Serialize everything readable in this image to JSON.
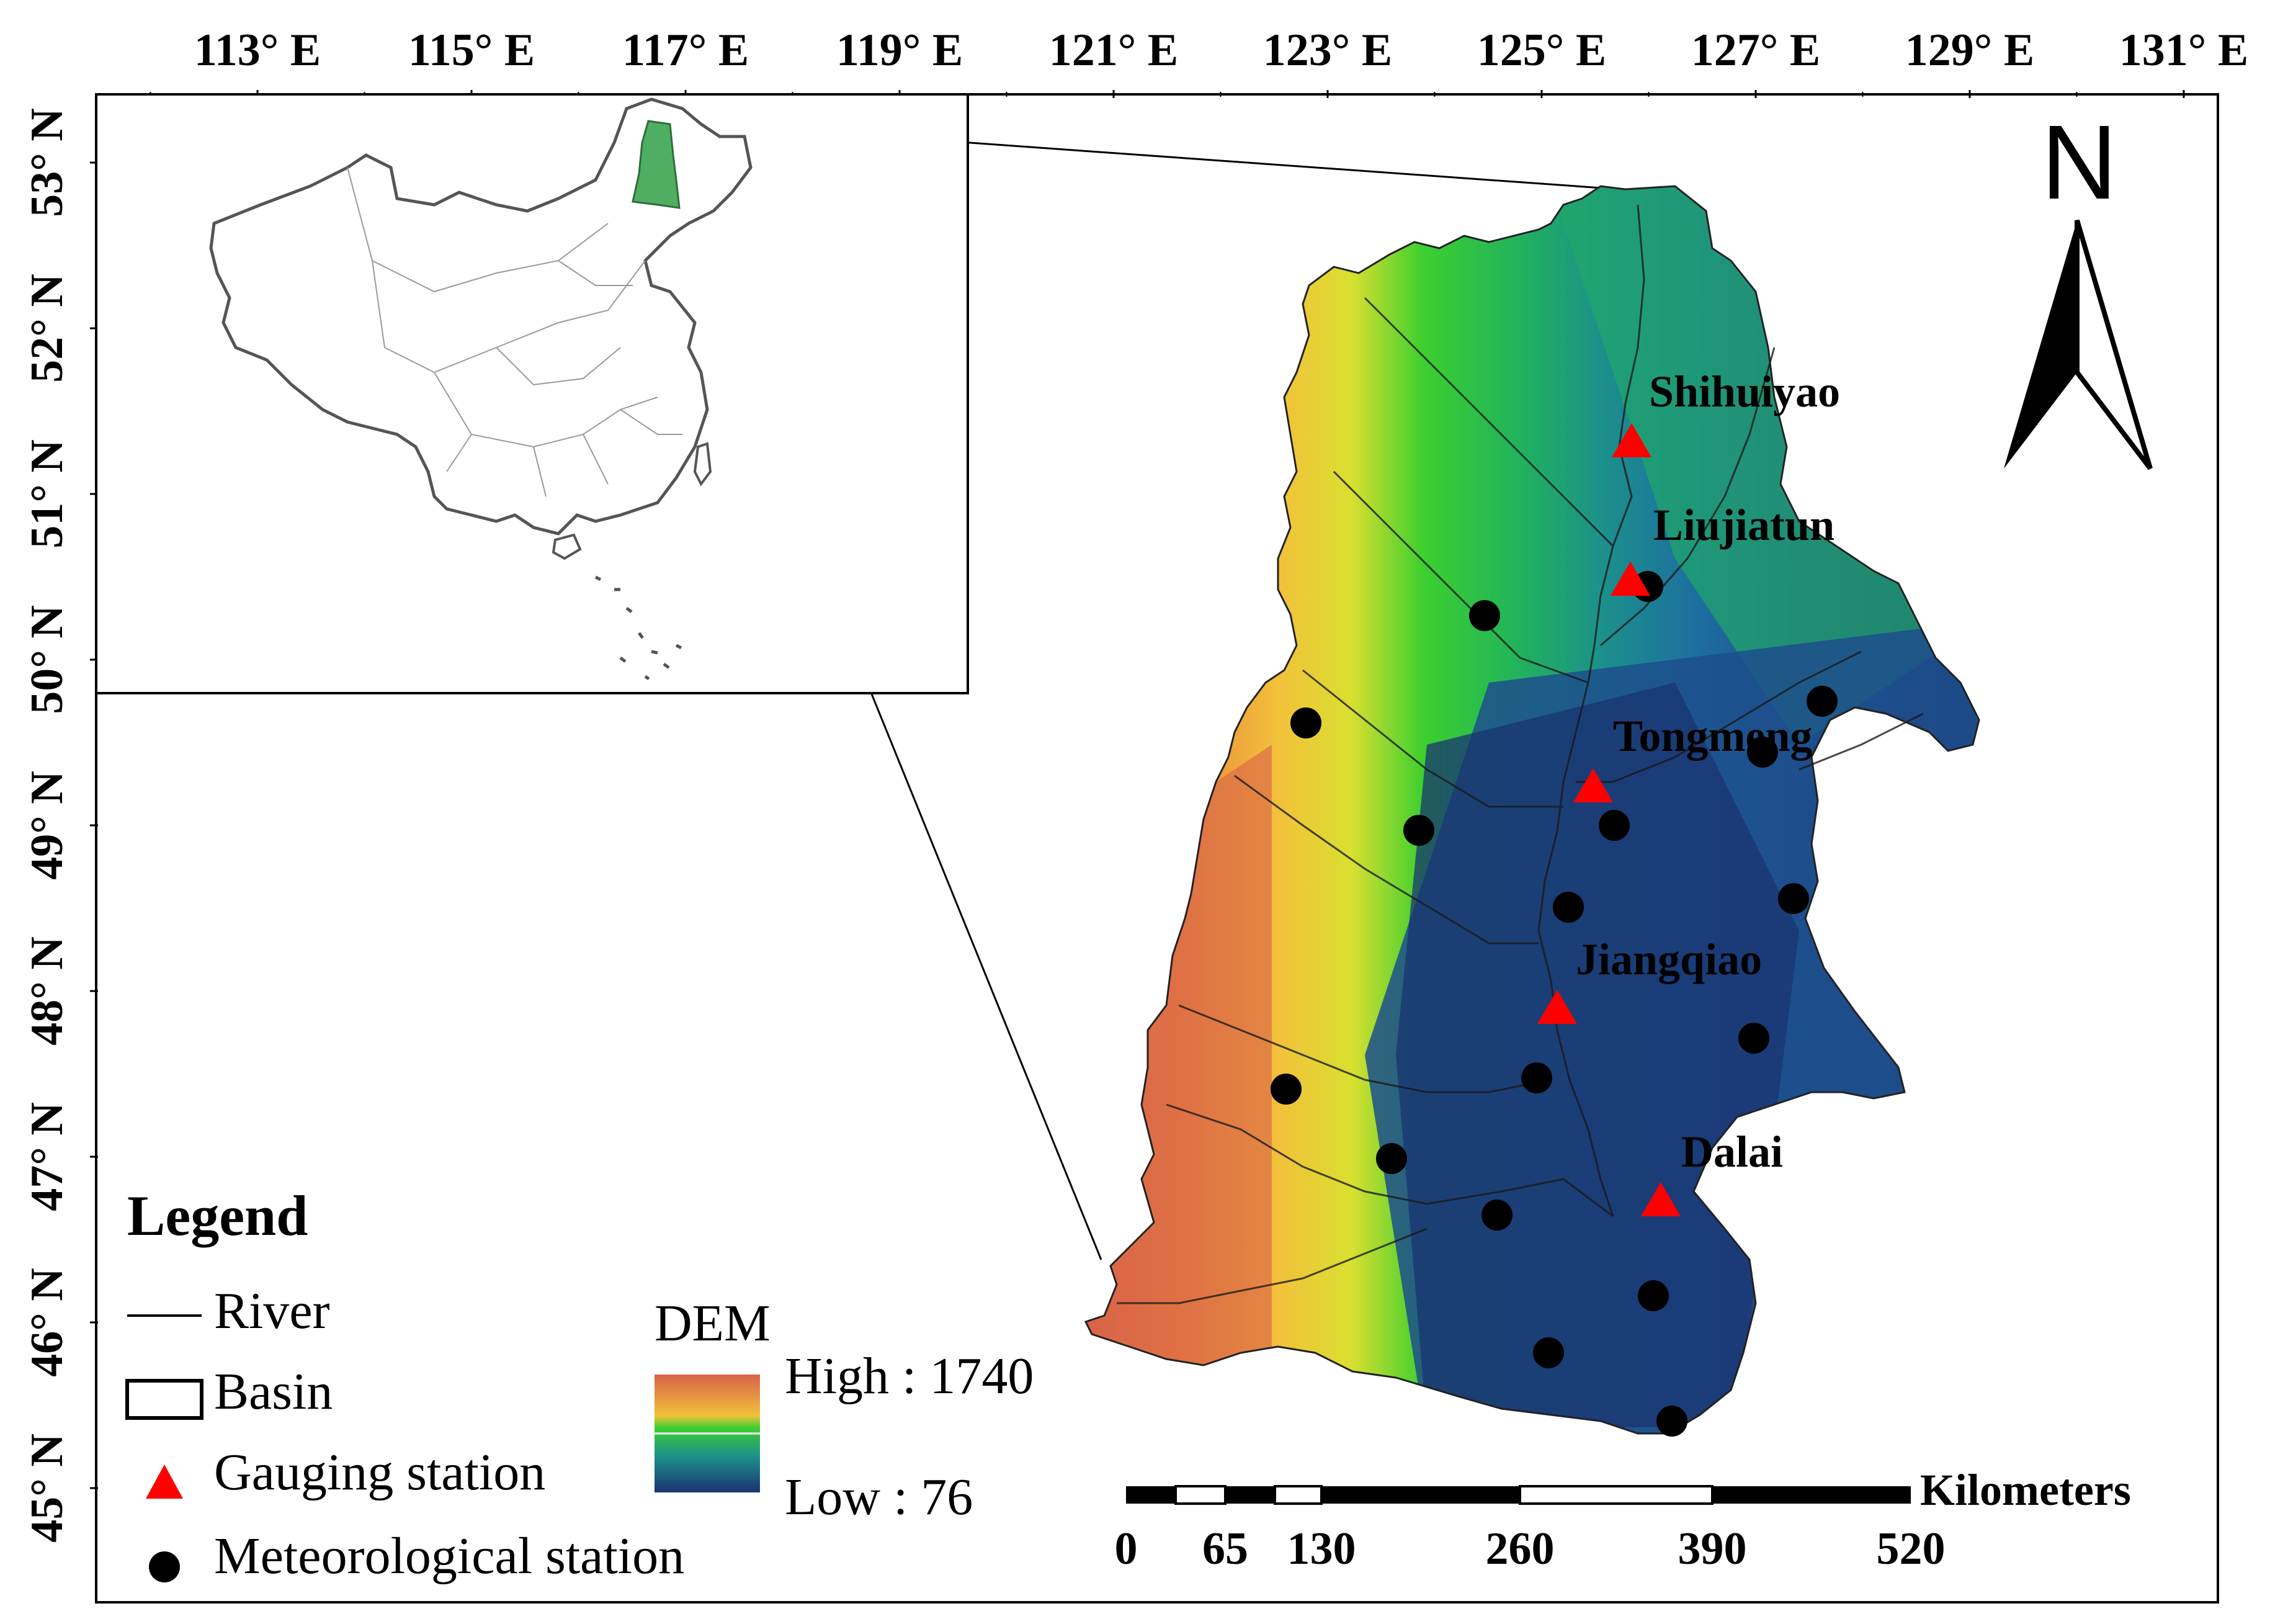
{
  "axes": {
    "top_ticks": [
      {
        "label": "113° E",
        "value": 113
      },
      {
        "label": "115° E",
        "value": 115
      },
      {
        "label": "117° E",
        "value": 117
      },
      {
        "label": "119° E",
        "value": 119
      },
      {
        "label": "121° E",
        "value": 121
      },
      {
        "label": "123° E",
        "value": 123
      },
      {
        "label": "125° E",
        "value": 125
      },
      {
        "label": "127° E",
        "value": 127
      },
      {
        "label": "129° E",
        "value": 129
      },
      {
        "label": "131° E",
        "value": 131
      }
    ],
    "left_ticks": [
      {
        "label": "53° N",
        "value": 53
      },
      {
        "label": "52° N",
        "value": 52
      },
      {
        "label": "51° N",
        "value": 51
      },
      {
        "label": "50° N",
        "value": 50
      },
      {
        "label": "49° N",
        "value": 49
      },
      {
        "label": "48° N",
        "value": 48
      },
      {
        "label": "47° N",
        "value": 47
      },
      {
        "label": "46° N",
        "value": 46
      },
      {
        "label": "45° N",
        "value": 45
      }
    ]
  },
  "north_arrow": {
    "label": "N",
    "icon": "north-arrow-icon"
  },
  "gauging_stations": [
    {
      "name": "Shihuiyao"
    },
    {
      "name": "Liujiatun"
    },
    {
      "name": "Tongmeng"
    },
    {
      "name": "Jiangqiao"
    },
    {
      "name": "Dalai"
    }
  ],
  "meteorological_station_count": 18,
  "legend": {
    "title": "Legend",
    "river": "River",
    "basin": "Basin",
    "gauging": "Gauging station",
    "meteo": "Meteorological station",
    "dem_title": "DEM",
    "dem_high": "High : 1740",
    "dem_low": "Low : 76"
  },
  "scale_bar": {
    "unit": "Kilometers",
    "ticks": [
      "0",
      "65",
      "130",
      "260",
      "390",
      "520"
    ]
  },
  "colors": {
    "gauging": "#ff0000",
    "meteo": "#000000",
    "inset_highlight": "#4fae62",
    "dem_high": "#d8624a",
    "dem_mid_high": "#f2c13a",
    "dem_mid": "#3ccf2f",
    "dem_low": "#1f3f7a"
  }
}
